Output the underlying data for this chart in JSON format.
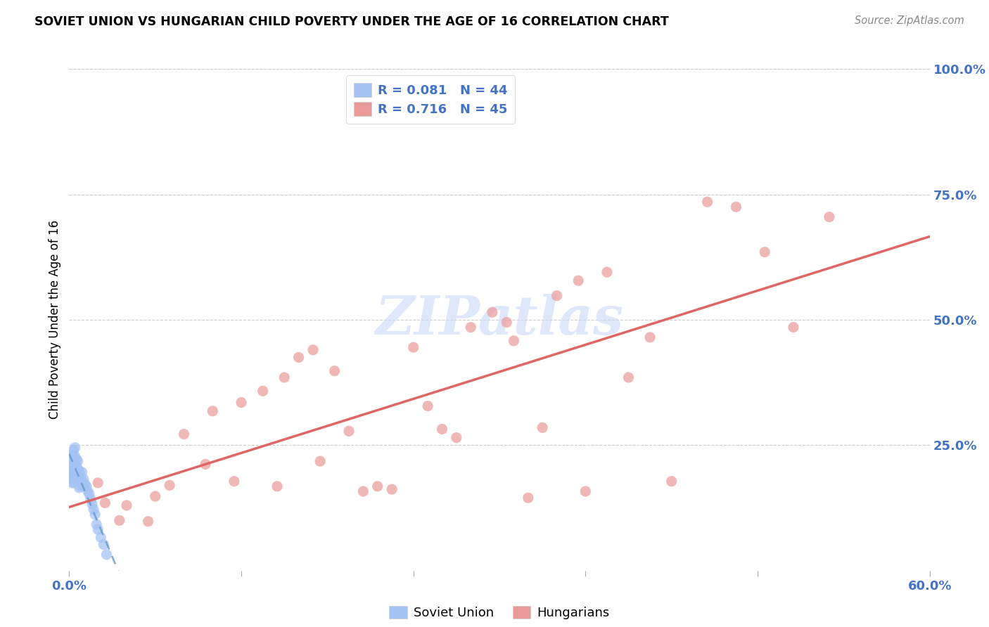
{
  "title": "SOVIET UNION VS HUNGARIAN CHILD POVERTY UNDER THE AGE OF 16 CORRELATION CHART",
  "source": "Source: ZipAtlas.com",
  "ylabel": "Child Poverty Under the Age of 16",
  "legend_label1": "Soviet Union",
  "legend_label2": "Hungarians",
  "R1": 0.081,
  "N1": 44,
  "R2": 0.716,
  "N2": 45,
  "xlim": [
    0.0,
    0.6
  ],
  "ylim": [
    0.0,
    1.0
  ],
  "color_soviet": "#a4c2f4",
  "color_hungarian": "#ea9999",
  "color_line_soviet": "#a4c2f4",
  "color_line_hungarian": "#e06666",
  "color_axis_text": "#4472c4",
  "watermark": "ZIPatlas",
  "soviet_x": [
    0.001,
    0.001,
    0.001,
    0.002,
    0.002,
    0.002,
    0.002,
    0.003,
    0.003,
    0.003,
    0.003,
    0.003,
    0.004,
    0.004,
    0.004,
    0.004,
    0.005,
    0.005,
    0.005,
    0.006,
    0.006,
    0.006,
    0.007,
    0.007,
    0.007,
    0.008,
    0.008,
    0.009,
    0.009,
    0.01,
    0.01,
    0.011,
    0.012,
    0.013,
    0.014,
    0.015,
    0.016,
    0.017,
    0.018,
    0.019,
    0.02,
    0.022,
    0.024,
    0.026
  ],
  "soviet_y": [
    0.225,
    0.205,
    0.185,
    0.23,
    0.215,
    0.195,
    0.175,
    0.24,
    0.225,
    0.208,
    0.19,
    0.175,
    0.245,
    0.228,
    0.212,
    0.188,
    0.222,
    0.208,
    0.188,
    0.218,
    0.202,
    0.178,
    0.198,
    0.18,
    0.165,
    0.188,
    0.168,
    0.196,
    0.178,
    0.182,
    0.168,
    0.172,
    0.168,
    0.158,
    0.152,
    0.142,
    0.132,
    0.122,
    0.112,
    0.092,
    0.082,
    0.066,
    0.052,
    0.032
  ],
  "hungarian_x": [
    0.02,
    0.025,
    0.035,
    0.04,
    0.055,
    0.06,
    0.07,
    0.08,
    0.095,
    0.1,
    0.115,
    0.12,
    0.135,
    0.145,
    0.15,
    0.16,
    0.17,
    0.175,
    0.185,
    0.195,
    0.205,
    0.215,
    0.225,
    0.24,
    0.25,
    0.26,
    0.27,
    0.28,
    0.295,
    0.31,
    0.32,
    0.33,
    0.34,
    0.355,
    0.36,
    0.375,
    0.39,
    0.405,
    0.42,
    0.445,
    0.465,
    0.485,
    0.505,
    0.53,
    0.305
  ],
  "hungarian_y": [
    0.175,
    0.135,
    0.1,
    0.13,
    0.098,
    0.148,
    0.17,
    0.272,
    0.212,
    0.318,
    0.178,
    0.335,
    0.358,
    0.168,
    0.385,
    0.425,
    0.44,
    0.218,
    0.398,
    0.278,
    0.158,
    0.168,
    0.162,
    0.445,
    0.328,
    0.282,
    0.265,
    0.485,
    0.515,
    0.458,
    0.145,
    0.285,
    0.548,
    0.578,
    0.158,
    0.595,
    0.385,
    0.465,
    0.178,
    0.735,
    0.725,
    0.635,
    0.485,
    0.705,
    0.495
  ]
}
